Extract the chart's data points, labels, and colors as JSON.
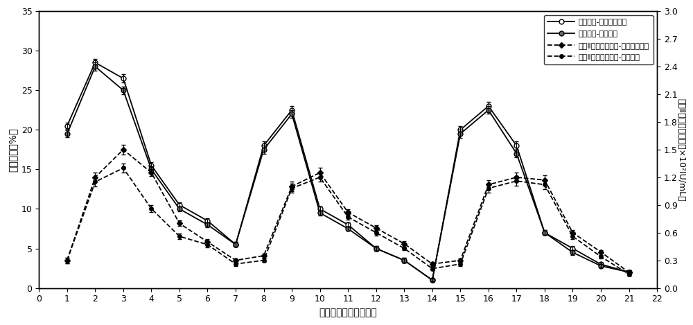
{
  "x": [
    1,
    2,
    3,
    4,
    5,
    6,
    7,
    8,
    9,
    10,
    11,
    12,
    13,
    14,
    15,
    16,
    17,
    18,
    19,
    20,
    21
  ],
  "transfection_continuous": [
    20.5,
    28.5,
    26.5,
    15.5,
    10.5,
    8.5,
    5.5,
    18.0,
    22.5,
    10.0,
    8.0,
    5.0,
    3.5,
    1.0,
    20.0,
    23.0,
    18.0,
    7.0,
    5.0,
    3.0,
    2.0
  ],
  "transfection_continuous_err": [
    0.4,
    0.5,
    0.5,
    0.4,
    0.3,
    0.3,
    0.3,
    0.5,
    0.5,
    0.3,
    0.3,
    0.3,
    0.3,
    0.2,
    0.5,
    0.5,
    0.5,
    0.3,
    0.3,
    0.2,
    0.2
  ],
  "transfection_traditional": [
    19.5,
    28.0,
    25.0,
    15.0,
    10.0,
    8.0,
    5.5,
    17.5,
    22.0,
    9.5,
    7.5,
    5.0,
    3.5,
    1.0,
    19.5,
    22.5,
    17.0,
    7.0,
    4.5,
    2.8,
    2.0
  ],
  "transfection_traditional_err": [
    0.4,
    0.5,
    0.5,
    0.4,
    0.3,
    0.3,
    0.3,
    0.5,
    0.5,
    0.3,
    0.3,
    0.3,
    0.3,
    0.2,
    0.5,
    0.5,
    0.5,
    0.3,
    0.3,
    0.2,
    0.2
  ],
  "activity_continuous_right": [
    0.3,
    1.2,
    1.5,
    1.25,
    0.7,
    0.5,
    0.3,
    0.35,
    1.1,
    1.25,
    0.82,
    0.65,
    0.48,
    0.26,
    0.3,
    1.12,
    1.2,
    1.17,
    0.6,
    0.39,
    0.17
  ],
  "activity_continuous_err": [
    0.03,
    0.05,
    0.05,
    0.04,
    0.03,
    0.03,
    0.02,
    0.02,
    0.05,
    0.05,
    0.03,
    0.03,
    0.03,
    0.02,
    0.02,
    0.05,
    0.05,
    0.05,
    0.03,
    0.02,
    0.02
  ],
  "activity_traditional_right": [
    0.3,
    1.15,
    1.3,
    0.86,
    0.56,
    0.47,
    0.26,
    0.3,
    1.08,
    1.2,
    0.77,
    0.6,
    0.43,
    0.21,
    0.26,
    1.08,
    1.16,
    1.12,
    0.56,
    0.34,
    0.15
  ],
  "activity_traditional_err": [
    0.03,
    0.05,
    0.05,
    0.04,
    0.03,
    0.03,
    0.02,
    0.02,
    0.05,
    0.05,
    0.03,
    0.03,
    0.02,
    0.02,
    0.02,
    0.05,
    0.05,
    0.05,
    0.03,
    0.02,
    0.02
  ],
  "left_ylabel": "转染效率（%）",
  "right_ylabel": "凝血Ⅱ因子蛋白活性（×10²IU/mL）",
  "xlabel": "转染后培养时间（天）",
  "legend1": "转染效率-连续多次瞬转",
  "legend2": "转染效率-传统瞬转",
  "legend3": "凝血Ⅱ因子蛋白活性-连续多次瞬转",
  "legend4": "凝血Ⅱ因子蛋白活性-传统瞬转",
  "left_ylim": [
    0,
    35
  ],
  "right_ylim": [
    0,
    3.0
  ],
  "right_yticks": [
    0,
    0.3,
    0.6,
    0.9,
    1.2,
    1.5,
    1.8,
    2.1,
    2.4,
    2.7,
    3.0
  ],
  "left_yticks": [
    0,
    5,
    10,
    15,
    20,
    25,
    30,
    35
  ],
  "xticks": [
    0,
    1,
    2,
    3,
    4,
    5,
    6,
    7,
    8,
    9,
    10,
    11,
    12,
    13,
    14,
    15,
    16,
    17,
    18,
    19,
    20,
    21,
    22
  ]
}
